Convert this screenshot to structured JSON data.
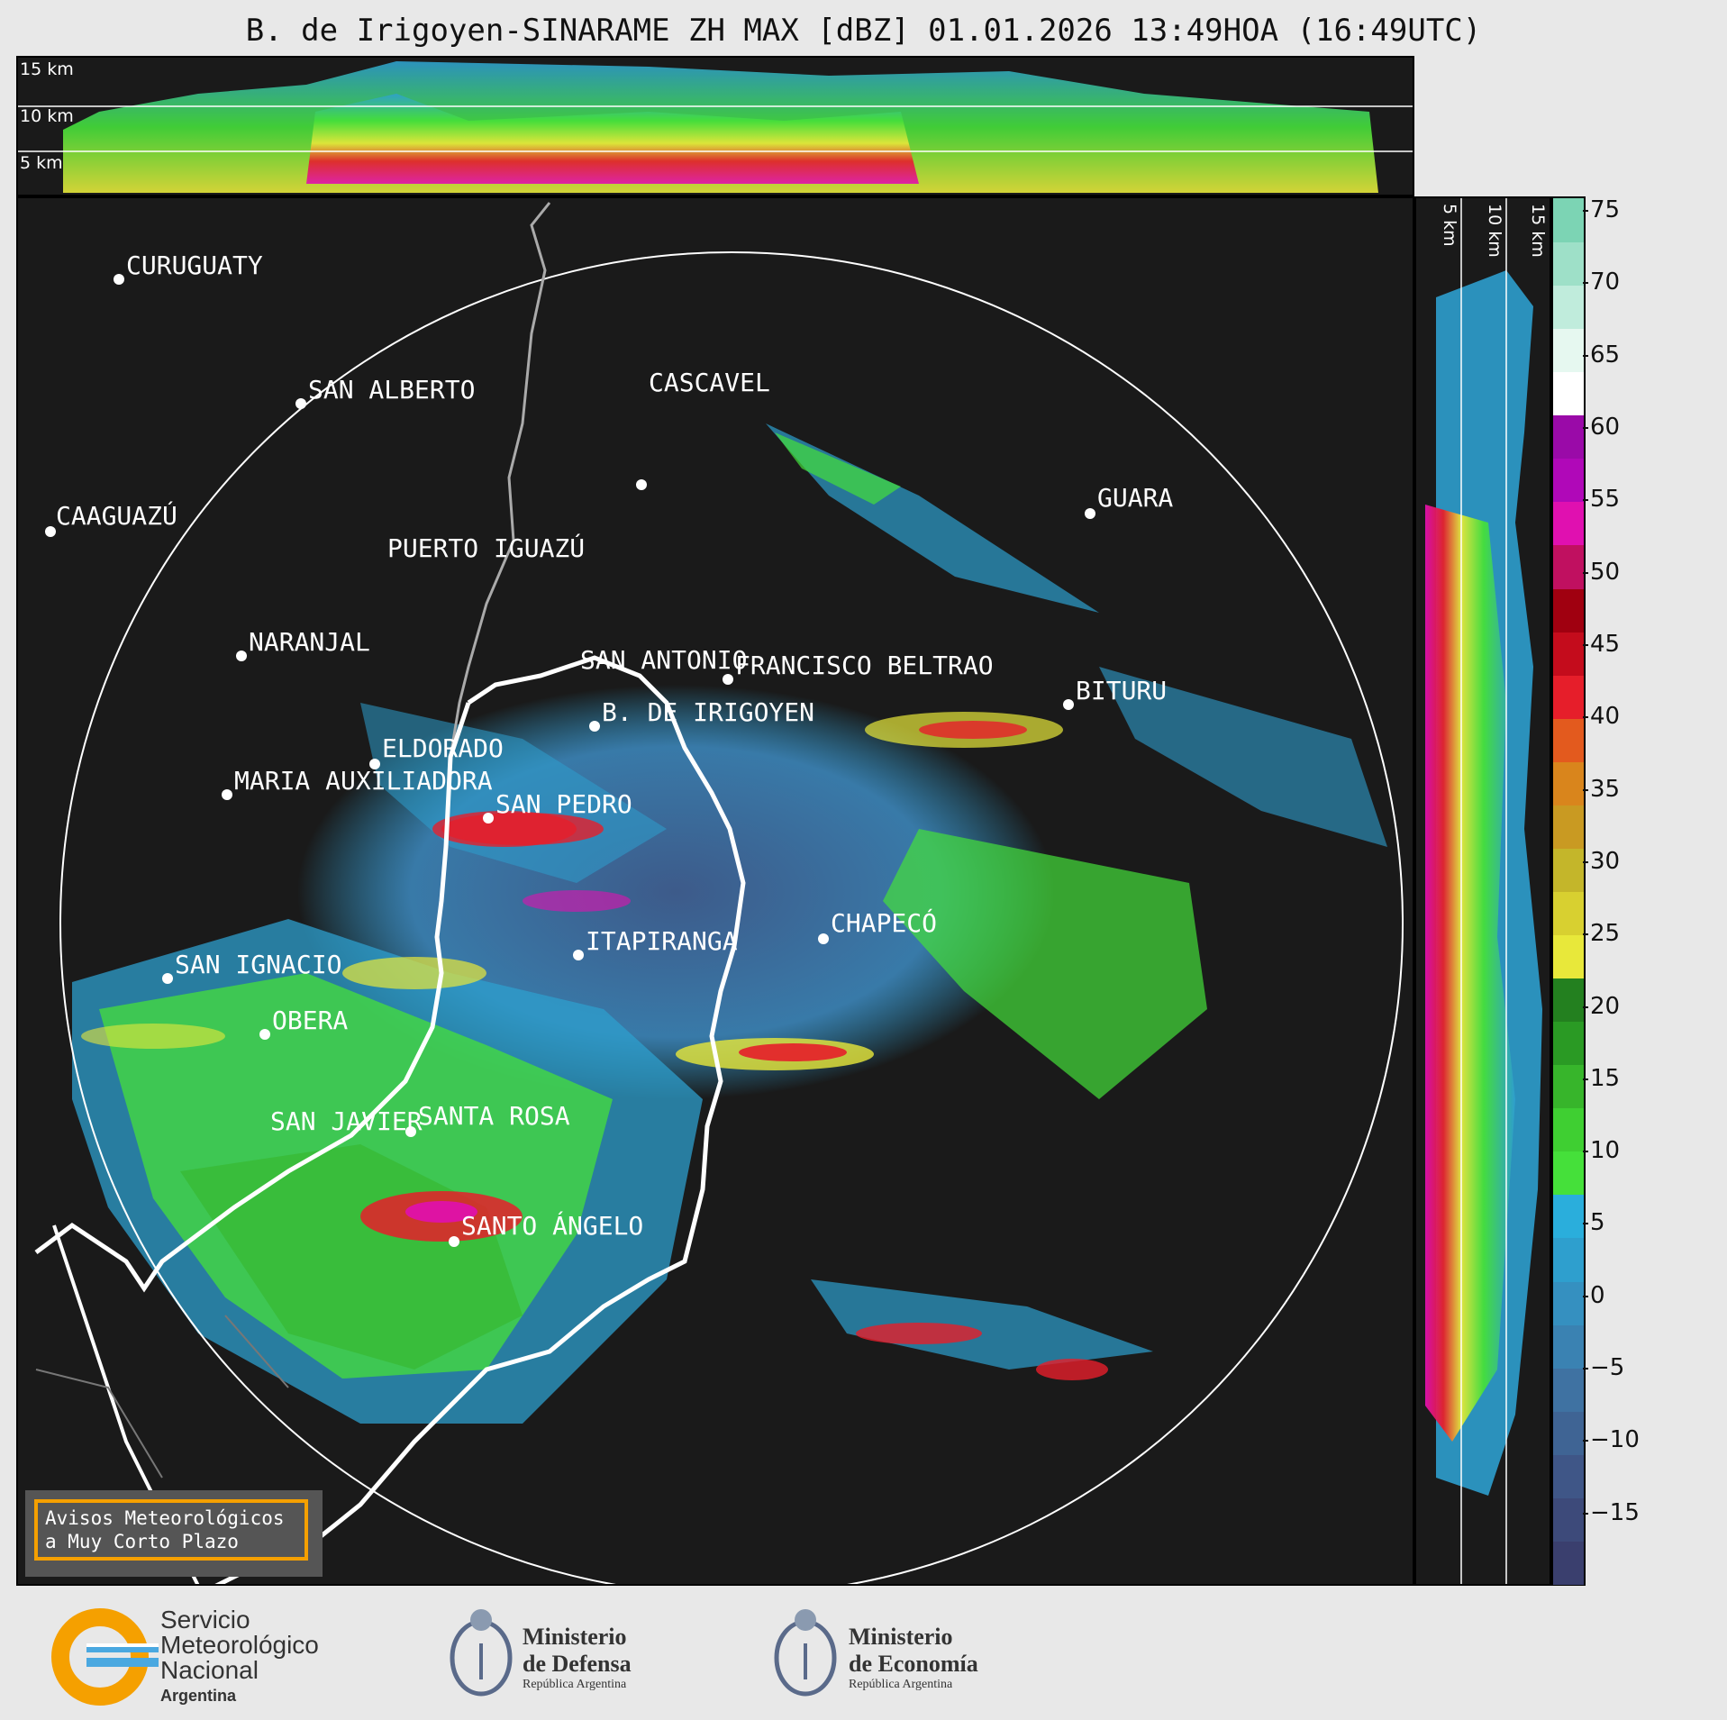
{
  "title": "B. de Irigoyen-SINARAME ZH MAX [dBZ] 01.01.2026 13:49HOA (16:49UTC)",
  "top_panel": {
    "height_labels": [
      "15 km",
      "10 km",
      "5 km"
    ]
  },
  "side_panel": {
    "height_labels": [
      "5 km",
      "10 km",
      "15 km"
    ]
  },
  "colorbar": {
    "ticks": [
      "75",
      "70",
      "65",
      "60",
      "55",
      "50",
      "45",
      "40",
      "35",
      "30",
      "25",
      "20",
      "15",
      "10",
      "5",
      "0",
      "−5",
      "−10",
      "−15"
    ],
    "range": [
      -20,
      76
    ],
    "colors": [
      "#3a3f6e",
      "#3d4a7a",
      "#3f5687",
      "#3f6494",
      "#3f72a2",
      "#3a82b2",
      "#3590c0",
      "#2e9fce",
      "#2aaedc",
      "#45e03a",
      "#3fcf32",
      "#37b52b",
      "#2a9a24",
      "#23801f",
      "#e8e83a",
      "#d8d030",
      "#c4b62a",
      "#c99a22",
      "#d9851c",
      "#e35a1e",
      "#e61e2a",
      "#c40c1c",
      "#a00010",
      "#c01060",
      "#e010b0",
      "#b008b8",
      "#9a0aa8",
      "#ffffff",
      "#e6f8f0",
      "#c0ecdc",
      "#9ee0c8",
      "#7cd4b4"
    ]
  },
  "cities": [
    {
      "name": "CURUGUATY"
    },
    {
      "name": "SAN ALBERTO"
    },
    {
      "name": "CASCAVEL"
    },
    {
      "name": "CAAGUAZÚ"
    },
    {
      "name": "GUARA"
    },
    {
      "name": "PUERTO IGUAZÚ"
    },
    {
      "name": "NARANJAL"
    },
    {
      "name": "SAN ANTONIO"
    },
    {
      "name": "FRANCISCO BELTRAO"
    },
    {
      "name": "BITURU"
    },
    {
      "name": "B. DE IRIGOYEN"
    },
    {
      "name": "ELDORADO"
    },
    {
      "name": "MARIA AUXILIADORA"
    },
    {
      "name": "SAN PEDRO"
    },
    {
      "name": "CHAPECÓ"
    },
    {
      "name": "ITAPIRANGA"
    },
    {
      "name": "SAN IGNACIO"
    },
    {
      "name": "OBERA"
    },
    {
      "name": "SAN JAVIER"
    },
    {
      "name": "SANTA ROSA"
    },
    {
      "name": "SANTO ÁNGELO"
    }
  ],
  "avisos": {
    "line1": "Avisos Meteorológicos",
    "line2": "a Muy Corto Plazo"
  },
  "footer": {
    "smn": {
      "line1": "Servicio",
      "line2": "Meteorológico",
      "line3": "Nacional",
      "line4": "Argentina"
    },
    "defensa": {
      "line1": "Ministerio",
      "line2": "de Defensa",
      "line3": "República Argentina"
    },
    "economia": {
      "line1": "Ministerio",
      "line2": "de Economía",
      "line3": "República Argentina"
    }
  }
}
